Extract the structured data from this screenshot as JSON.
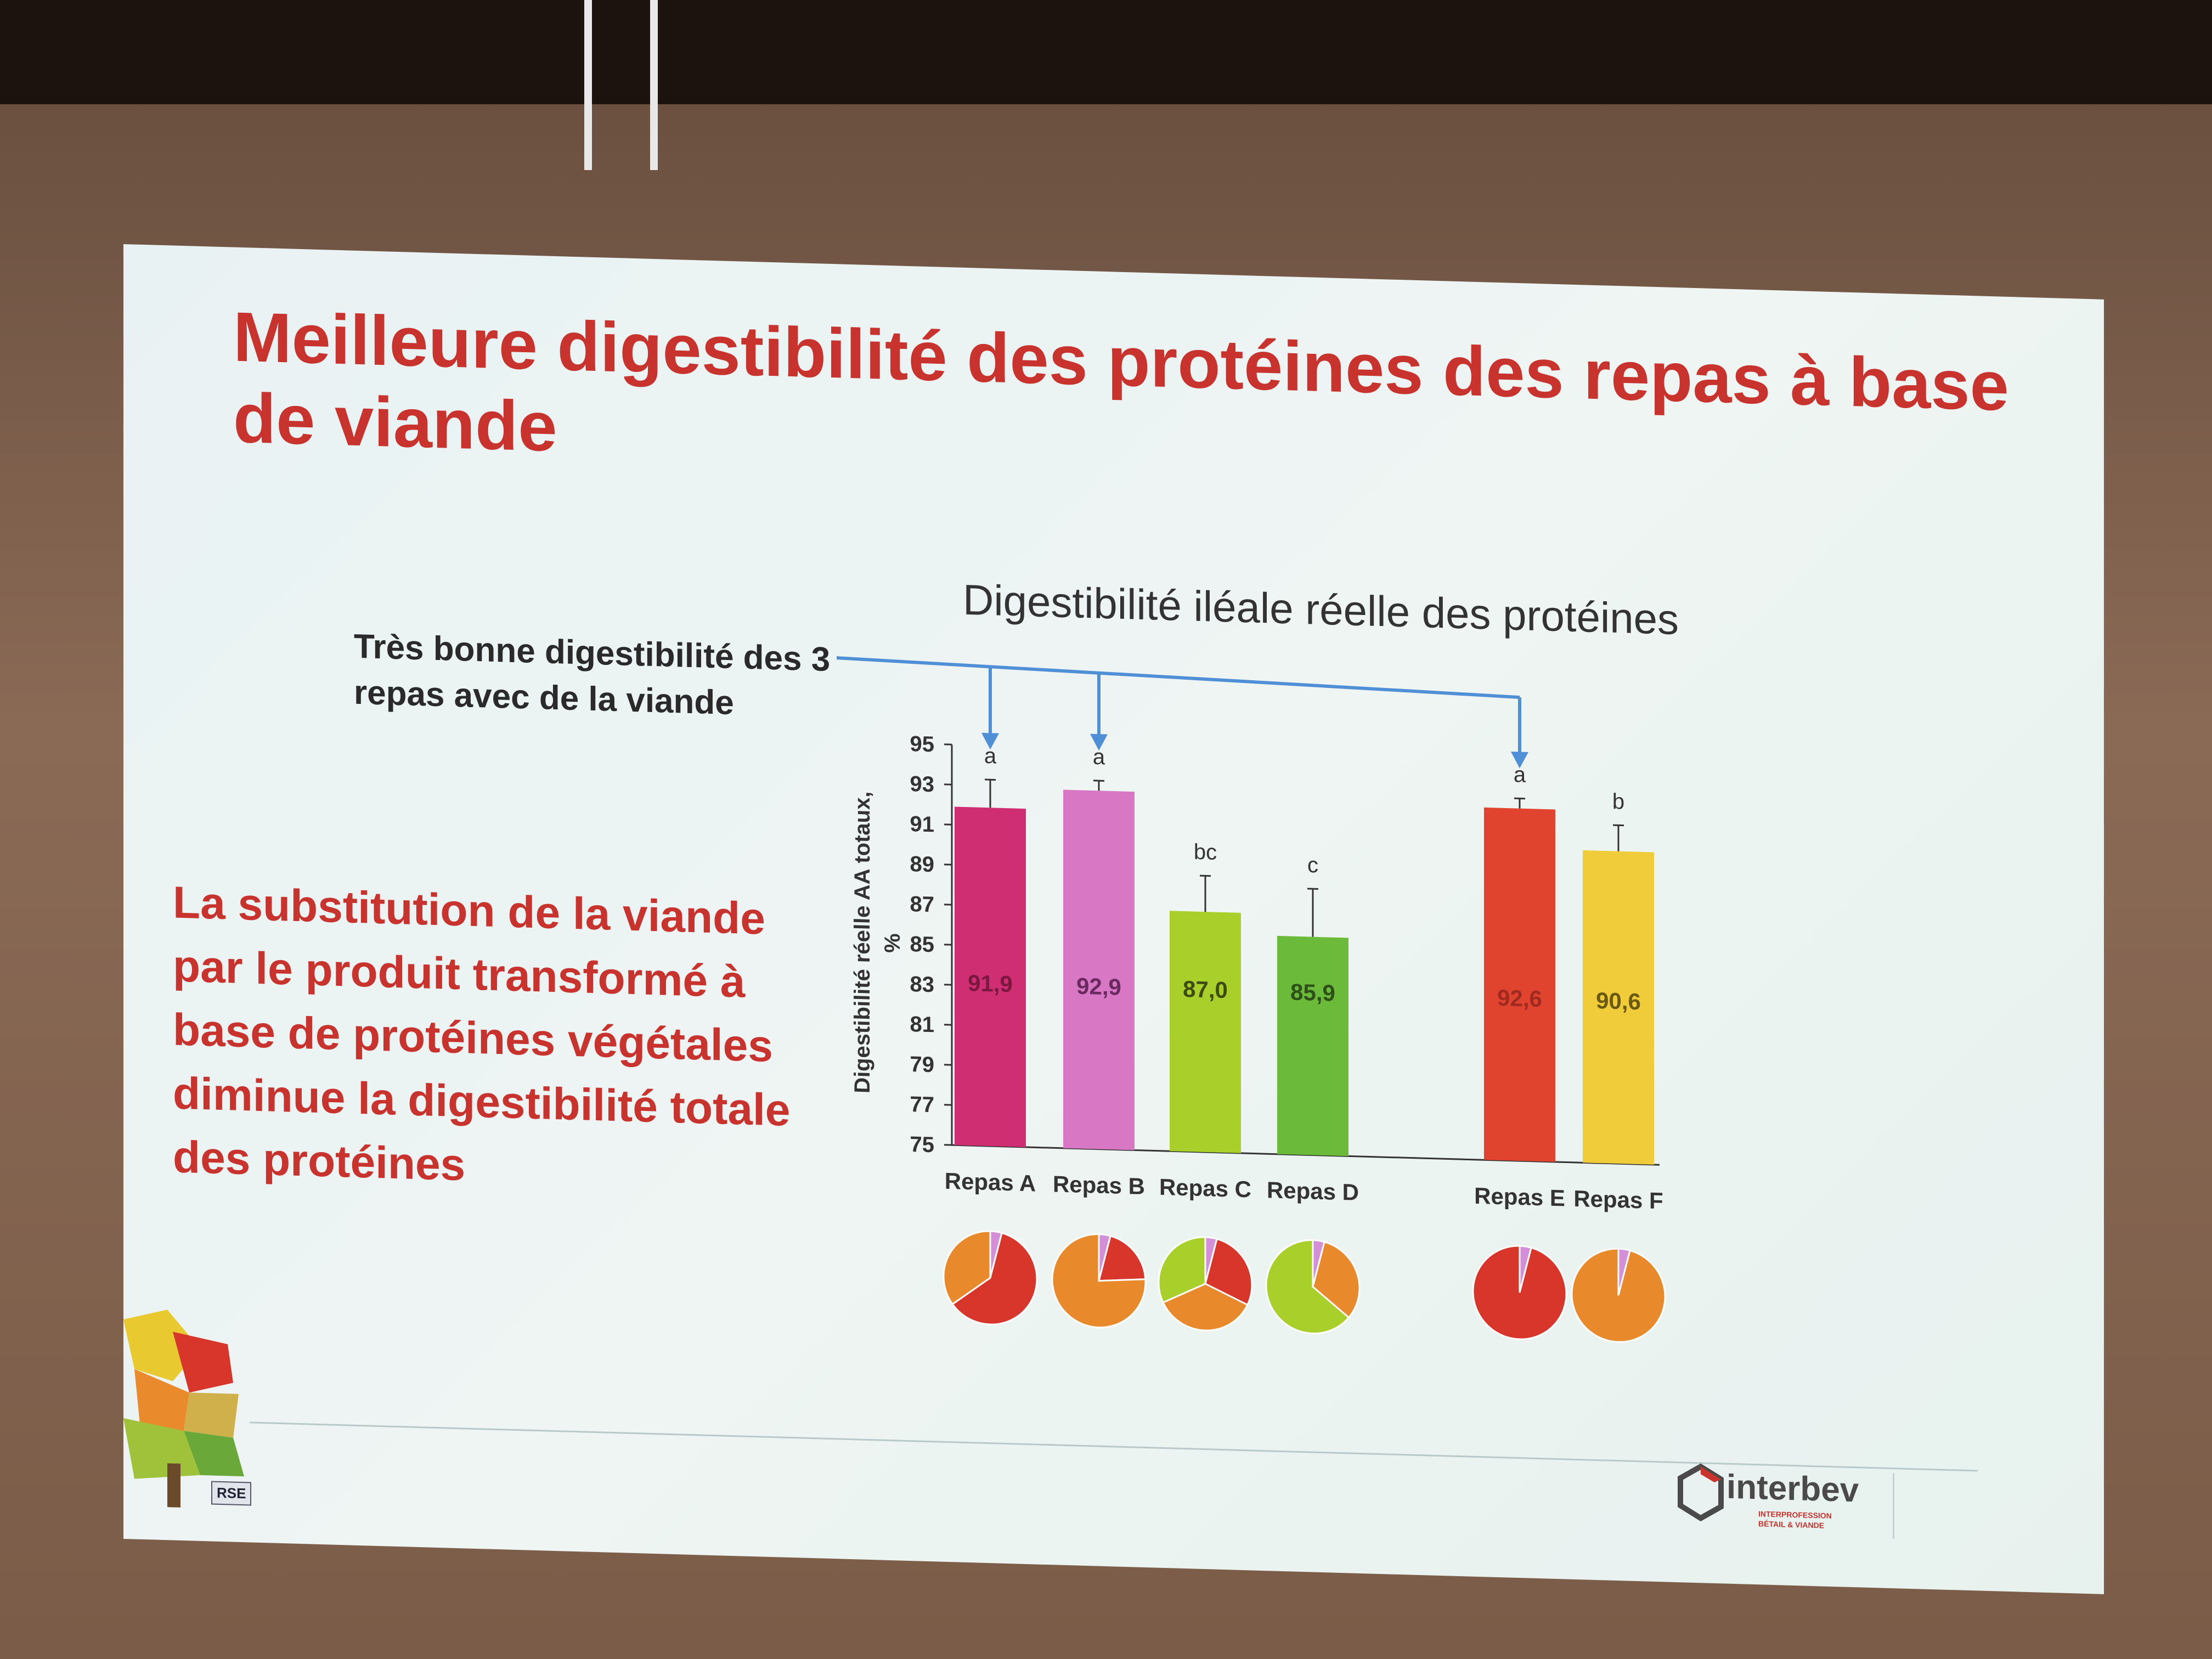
{
  "slide": {
    "title": "Meilleure digestibilité des protéines des repas à base de viande",
    "chart_title": "Digestibilité iléale réelle des protéines",
    "callout": "Très bonne digestibilité des 3 repas avec de la viande",
    "conclusion": "La substitution de la viande par le produit transformé à base de protéines végétales diminue la digestibilité totale des protéines",
    "brand_name": "interbev",
    "brand_sub_1": "INTERPROFESSION",
    "brand_sub_2": "BÉTAIL & VIANDE",
    "rse_badge": "RSE"
  },
  "chart_data": {
    "type": "bar",
    "title": "Digestibilité iléale réelle des protéines",
    "ylabel_line1": "Digestibilité réelle AA totaux,",
    "ylabel_line2": "%",
    "ylim": [
      75,
      95
    ],
    "yticks": [
      75,
      77,
      79,
      81,
      83,
      85,
      87,
      89,
      91,
      93,
      95
    ],
    "categories": [
      "Repas A",
      "Repas B",
      "Repas C",
      "Repas D",
      "Repas E",
      "Repas F"
    ],
    "values": [
      91.9,
      92.9,
      87.0,
      85.9,
      92.6,
      90.6
    ],
    "value_labels": [
      "91,9",
      "92,9",
      "87,0",
      "85,9",
      "92,6",
      "90,6"
    ],
    "error": [
      1.4,
      0.5,
      1.8,
      2.4,
      0.5,
      1.3
    ],
    "significance": [
      "a",
      "a",
      "bc",
      "c",
      "a",
      "b"
    ],
    "colors": [
      "#cf2f72",
      "#d877c4",
      "#a8cf2a",
      "#6cba3a",
      "#e0442e",
      "#f0cc3a"
    ],
    "label_colors": [
      "#7a1840",
      "#6a2a60",
      "#3d4a10",
      "#2c5018",
      "#a12a20",
      "#6a5a10"
    ],
    "highlighted": [
      "Repas A",
      "Repas B",
      "Repas E"
    ],
    "pies": [
      [
        {
          "v": 0.04,
          "c": "#d38fd8"
        },
        {
          "v": 0.61,
          "c": "#d8362a"
        },
        {
          "v": 0.35,
          "c": "#e88a2c"
        }
      ],
      [
        {
          "v": 0.04,
          "c": "#d38fd8"
        },
        {
          "v": 0.2,
          "c": "#d8362a"
        },
        {
          "v": 0.76,
          "c": "#e88a2c"
        }
      ],
      [
        {
          "v": 0.04,
          "c": "#d38fd8"
        },
        {
          "v": 0.28,
          "c": "#d8362a"
        },
        {
          "v": 0.36,
          "c": "#e88a2c"
        },
        {
          "v": 0.32,
          "c": "#a8cf2a"
        }
      ],
      [
        {
          "v": 0.04,
          "c": "#d38fd8"
        },
        {
          "v": 0.32,
          "c": "#e88a2c"
        },
        {
          "v": 0.64,
          "c": "#a8cf2a"
        }
      ],
      [
        {
          "v": 0.04,
          "c": "#d38fd8"
        },
        {
          "v": 0.96,
          "c": "#d8362a"
        }
      ],
      [
        {
          "v": 0.04,
          "c": "#d38fd8"
        },
        {
          "v": 0.96,
          "c": "#e88a2c"
        }
      ]
    ]
  }
}
